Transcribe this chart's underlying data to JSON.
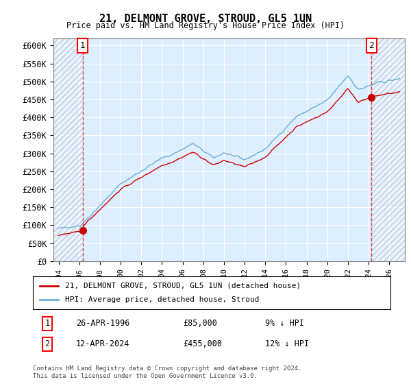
{
  "title": "21, DELMONT GROVE, STROUD, GL5 1UN",
  "subtitle": "Price paid vs. HM Land Registry's House Price Index (HPI)",
  "ylabel": "",
  "ylim": [
    0,
    620000
  ],
  "yticks": [
    0,
    50000,
    100000,
    150000,
    200000,
    250000,
    300000,
    350000,
    400000,
    450000,
    500000,
    550000,
    600000
  ],
  "ytick_labels": [
    "£0",
    "£50K",
    "£100K",
    "£150K",
    "£200K",
    "£250K",
    "£300K",
    "£350K",
    "£400K",
    "£450K",
    "£500K",
    "£550K",
    "£600K"
  ],
  "sale1_date": 1996.32,
  "sale1_price": 85000,
  "sale1_label": "1",
  "sale2_date": 2024.28,
  "sale2_price": 455000,
  "sale2_label": "2",
  "legend_line1": "21, DELMONT GROVE, STROUD, GL5 1UN (detached house)",
  "legend_line2": "HPI: Average price, detached house, Stroud",
  "table_row1": [
    "1",
    "26-APR-1996",
    "£85,000",
    "9% ↓ HPI"
  ],
  "table_row2": [
    "2",
    "12-APR-2024",
    "£455,000",
    "12% ↓ HPI"
  ],
  "footnote": "Contains HM Land Registry data © Crown copyright and database right 2024.\nThis data is licensed under the Open Government Licence v3.0.",
  "hpi_color": "#6baed6",
  "price_color": "#cc0000",
  "bg_plot": "#ddeeff",
  "bg_hatch_color": "#c0c8d8",
  "grid_color": "#ffffff"
}
